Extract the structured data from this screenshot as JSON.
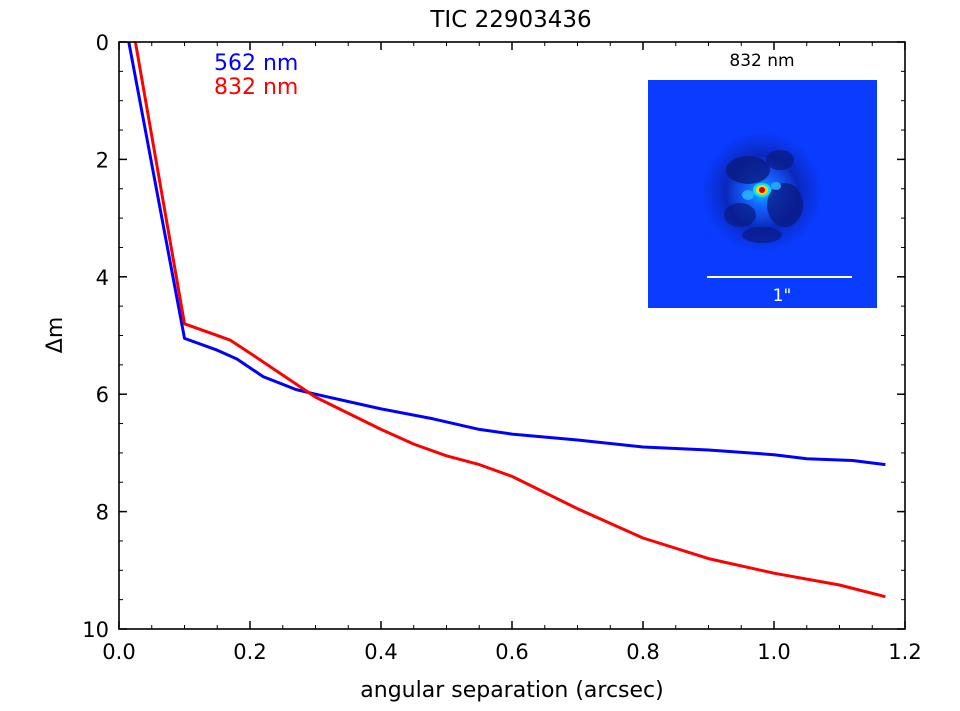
{
  "chart_data": {
    "type": "line",
    "title": "TIC 22903436",
    "xlabel": "angular separation (arcsec)",
    "ylabel": "Δm",
    "xlim": [
      0.0,
      1.2
    ],
    "ylim": [
      10,
      0
    ],
    "y_inverted": true,
    "xticks": [
      "0.0",
      "0.2",
      "0.4",
      "0.6",
      "0.8",
      "1.0",
      "1.2"
    ],
    "yticks": [
      "0",
      "2",
      "4",
      "6",
      "8",
      "10"
    ],
    "legend_position": "top-left",
    "series": [
      {
        "name": "562 nm",
        "color": "#0000ff",
        "x": [
          0.015,
          0.1,
          0.15,
          0.18,
          0.22,
          0.27,
          0.3,
          0.4,
          0.48,
          0.55,
          0.6,
          0.7,
          0.8,
          0.9,
          1.0,
          1.05,
          1.12,
          1.17
        ],
        "y": [
          0.0,
          5.05,
          5.25,
          5.4,
          5.7,
          5.92,
          6.0,
          6.25,
          6.42,
          6.6,
          6.68,
          6.78,
          6.9,
          6.95,
          7.03,
          7.1,
          7.13,
          7.2
        ]
      },
      {
        "name": "832 nm",
        "color": "#ff0000",
        "x": [
          0.025,
          0.1,
          0.13,
          0.17,
          0.2,
          0.3,
          0.4,
          0.45,
          0.5,
          0.55,
          0.6,
          0.7,
          0.8,
          0.9,
          1.0,
          1.1,
          1.17
        ],
        "y": [
          0.0,
          4.8,
          4.92,
          5.08,
          5.3,
          6.05,
          6.6,
          6.85,
          7.05,
          7.2,
          7.4,
          7.95,
          8.45,
          8.8,
          9.05,
          9.25,
          9.45
        ]
      }
    ],
    "inset": {
      "title": "832 nm",
      "scale_label": "1\""
    }
  }
}
